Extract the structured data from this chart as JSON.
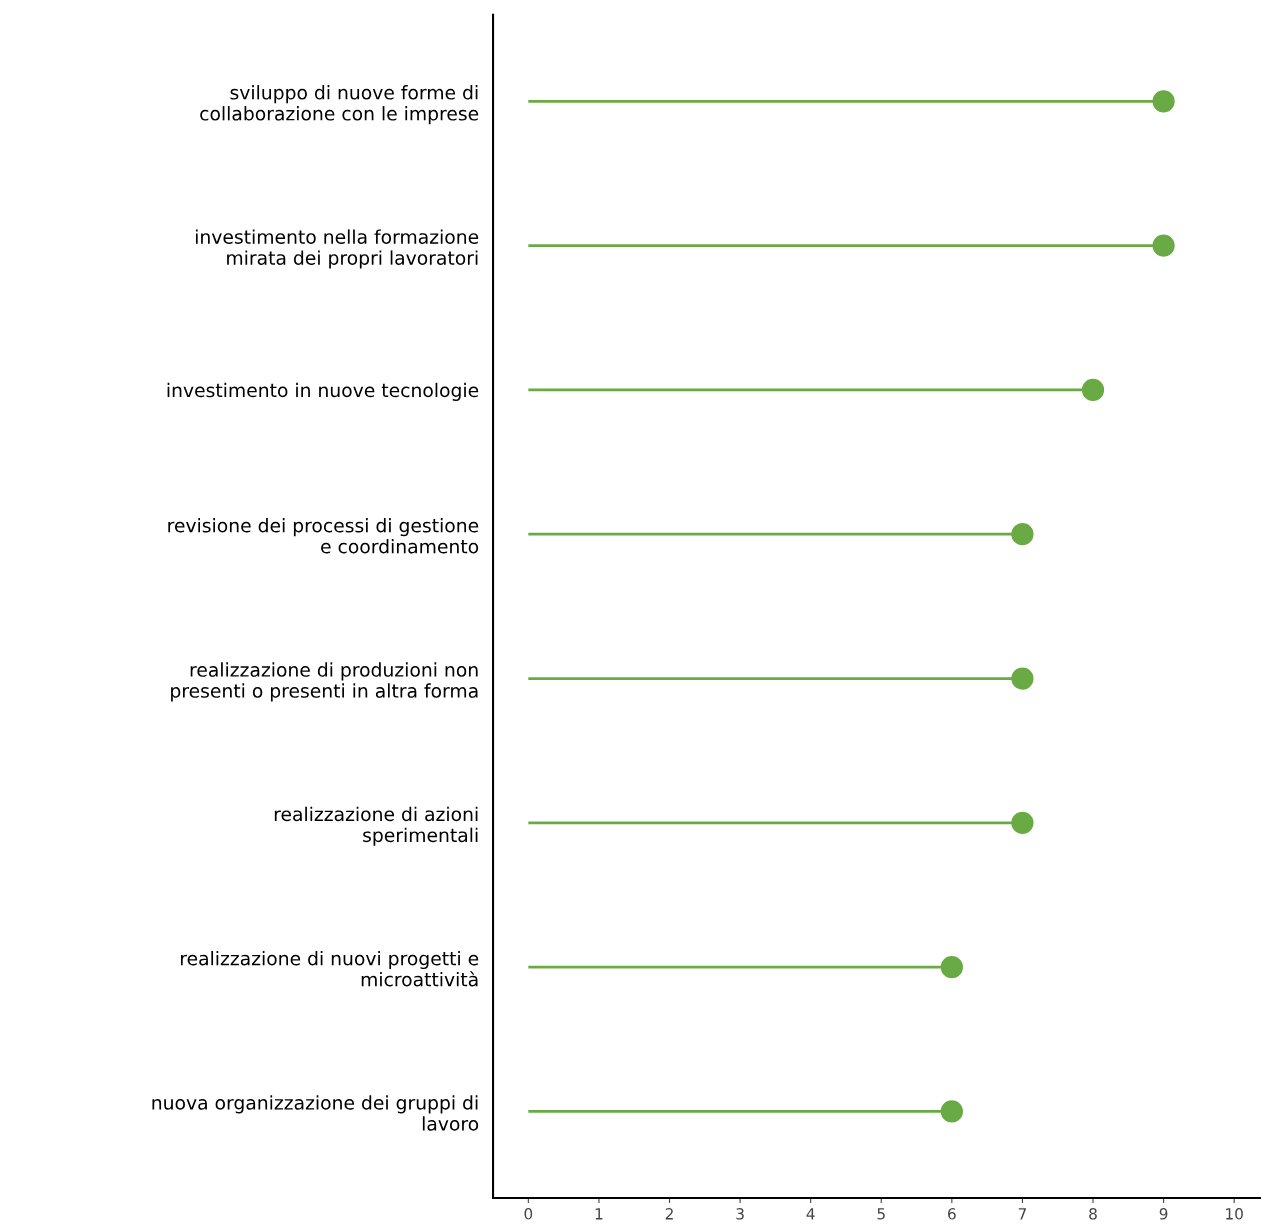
{
  "chart_data": {
    "type": "lollipop",
    "orientation": "horizontal",
    "categories": [
      "sviluppo di nuove forme di\ncollaborazione con le imprese",
      "investimento nella formazione\nmirata dei propri lavoratori",
      "investimento in nuove tecnologie",
      "revisione dei processi di gestione\ne coordinamento",
      "realizzazione di produzioni non\npresenti o presenti in altra forma",
      "realizzazione di azioni\nsperimentali",
      "realizzazione di nuovi progetti e\nmicroattività",
      "nuova organizzazione dei gruppi di\nlavoro"
    ],
    "values": [
      9,
      9,
      8,
      7,
      7,
      7,
      6,
      6
    ],
    "color": "#6aaa44",
    "marker": "circle",
    "xlim": [
      -0.5,
      10.38
    ],
    "xticks": [
      0,
      1,
      2,
      3,
      4,
      5,
      6,
      7,
      8,
      9,
      10
    ]
  }
}
